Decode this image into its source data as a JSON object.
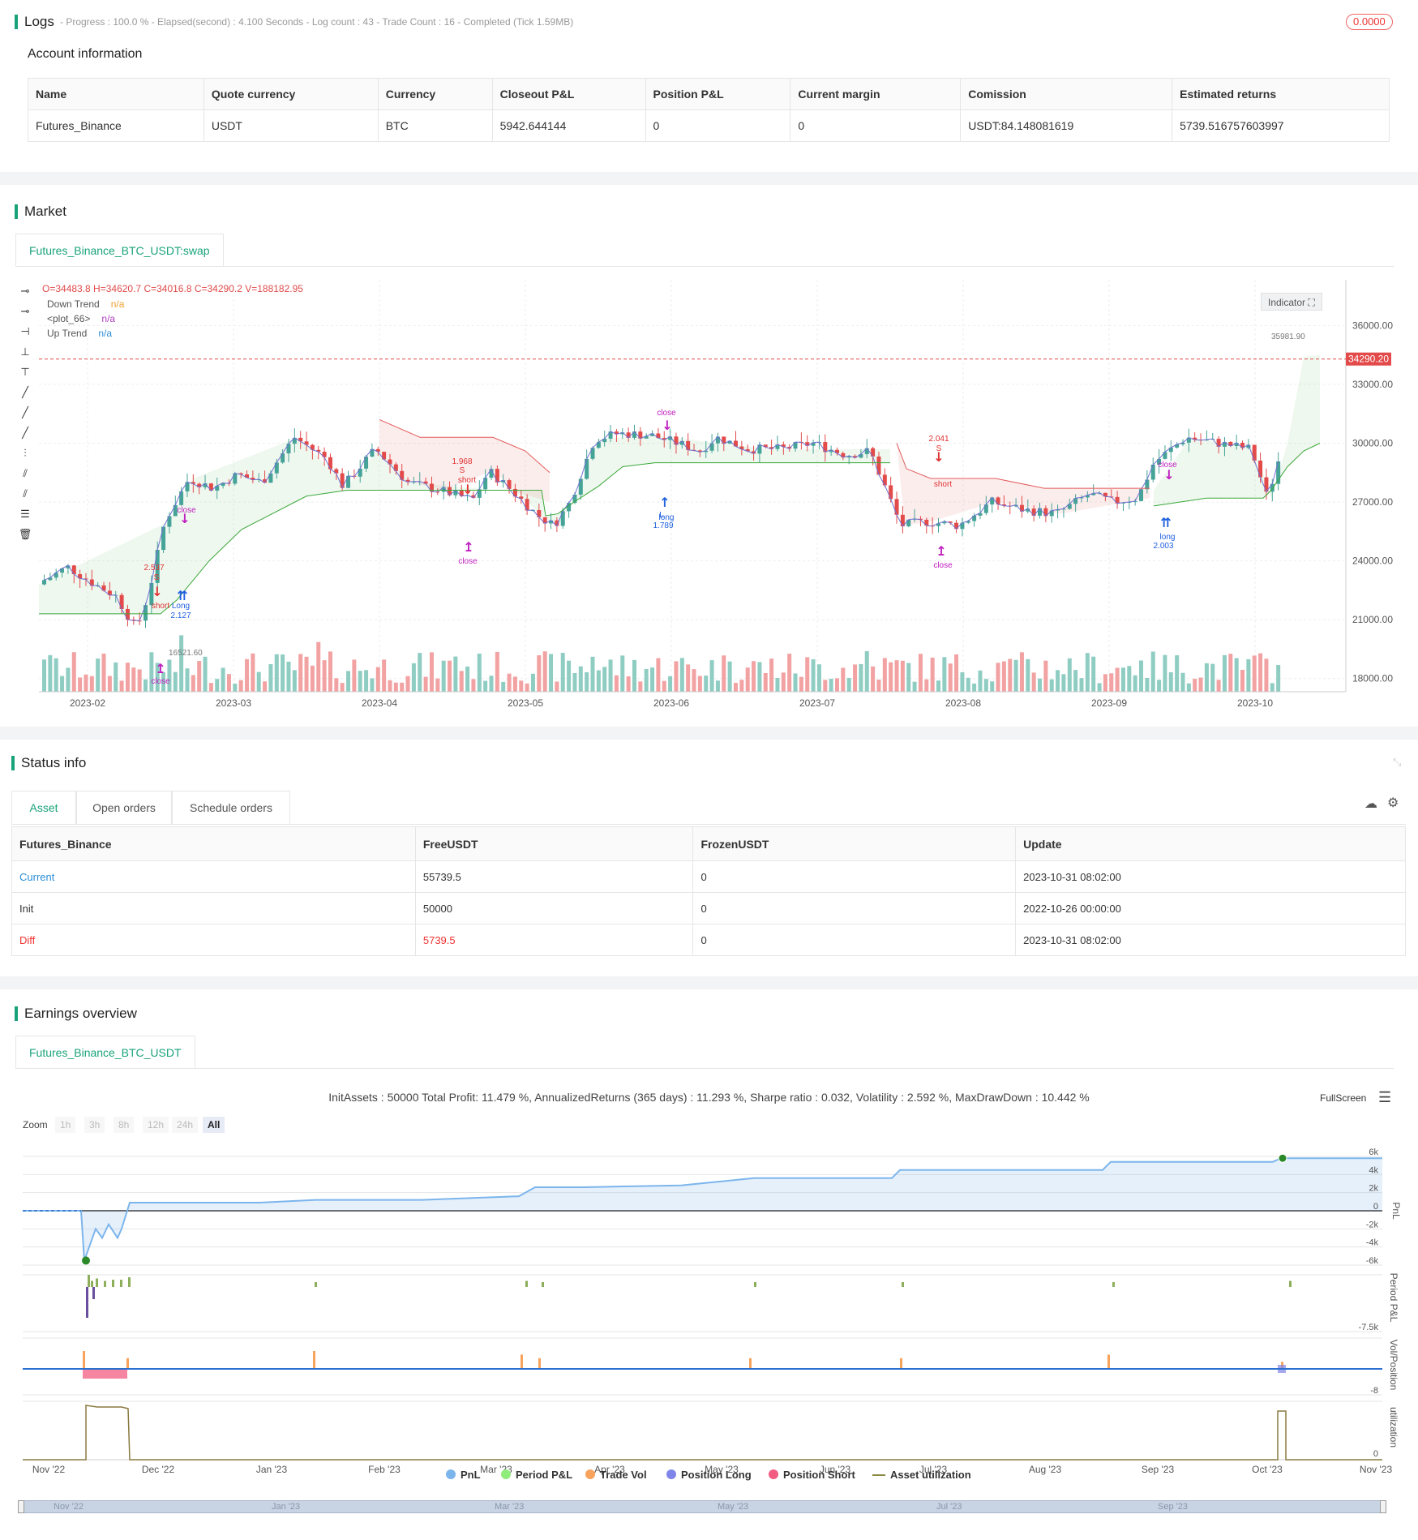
{
  "logs": {
    "title": "Logs",
    "summary": "- Progress : 100.0 % - Elapsed(second) : 4.100 Seconds - Log count : 43 - Trade Count : 16 - Completed (Tick 1.59MB)",
    "badge": "0.0000"
  },
  "account": {
    "title": "Account information",
    "headers": [
      "Name",
      "Quote currency",
      "Currency",
      "Closeout P&L",
      "Position P&L",
      "Current margin",
      "Comission",
      "Estimated returns"
    ],
    "row": [
      "Futures_Binance",
      "USDT",
      "BTC",
      "5942.644144",
      "0",
      "0",
      "USDT:84.148081619",
      "5739.516757603997"
    ]
  },
  "market": {
    "title": "Market",
    "tab": "Futures_Binance_BTC_USDT:swap",
    "ohlc": "O=34483.8 H=34620.7 C=34016.8 C=34290.2 V=188182.95",
    "legend": [
      {
        "name": "Down Trend",
        "val": "n/a",
        "color": "#f0a030"
      },
      {
        "name": "<plot_66>",
        "val": "n/a",
        "color": "#b040c0"
      },
      {
        "name": "Up Trend",
        "val": "n/a",
        "color": "#2b8fd6"
      }
    ],
    "indicator_btn": "Indicator",
    "price_tag": "34290.20",
    "high_label": "35981.90",
    "low_label": "16521.60",
    "y_ticks": [
      "36000.00",
      "33000.00",
      "30000.00",
      "27000.00",
      "24000.00",
      "21000.00",
      "18000.00"
    ],
    "x_ticks": [
      "2023-02",
      "2023-03",
      "2023-04",
      "2023-05",
      "2023-06",
      "2023-07",
      "2023-08",
      "2023-09",
      "2023-10"
    ],
    "markers": [
      {
        "text": "close",
        "color": "#c020c0"
      },
      {
        "text": "2.537",
        "color": "#e03030"
      },
      {
        "text": "S",
        "color": "#e03030"
      },
      {
        "text": "short",
        "color": "#e03030"
      },
      {
        "text": "Long",
        "color": "#2060e0"
      },
      {
        "text": "2.127",
        "color": "#2060e0"
      },
      {
        "text": "close",
        "color": "#c020c0"
      },
      {
        "text": "1.968",
        "color": "#e03030"
      },
      {
        "text": "S",
        "color": "#e03030"
      },
      {
        "text": "short",
        "color": "#e03030"
      },
      {
        "text": "close",
        "color": "#c020c0"
      },
      {
        "text": "close",
        "color": "#c020c0"
      },
      {
        "text": "long",
        "color": "#2060e0"
      },
      {
        "text": "L",
        "color": "#2060e0"
      },
      {
        "text": "1.789",
        "color": "#2060e0"
      },
      {
        "text": "2.041",
        "color": "#e03030"
      },
      {
        "text": "S",
        "color": "#e03030"
      },
      {
        "text": "short",
        "color": "#e03030"
      },
      {
        "text": "close",
        "color": "#c020c0"
      },
      {
        "text": "close",
        "color": "#c020c0"
      },
      {
        "text": "long",
        "color": "#2060e0"
      },
      {
        "text": "2.003",
        "color": "#2060e0"
      }
    ]
  },
  "status": {
    "title": "Status info",
    "tabs": [
      "Asset",
      "Open orders",
      "Schedule orders"
    ],
    "headers": [
      "Futures_Binance",
      "FreeUSDT",
      "FrozenUSDT",
      "Update"
    ],
    "rows": [
      [
        "Current",
        "55739.5",
        "0",
        "2023-10-31 08:02:00"
      ],
      [
        "Init",
        "50000",
        "0",
        "2022-10-26 00:00:00"
      ],
      [
        "Diff",
        "5739.5",
        "0",
        "2023-10-31 08:02:00"
      ]
    ]
  },
  "earnings": {
    "title": "Earnings overview",
    "tab": "Futures_Binance_BTC_USDT",
    "summary": "InitAssets : 50000 Total Profit: 11.479 %, AnnualizedReturns (365 days) : 11.293 %, Sharpe ratio : 0.032, Volatility : 2.592 %, MaxDrawDown : 10.442 %",
    "fullscreen": "FullScreen",
    "zoom_label": "Zoom",
    "zoom": [
      "1h",
      "3h",
      "8h",
      "12h",
      "24h",
      "All"
    ],
    "pnl_ticks": [
      "6k",
      "4k",
      "2k",
      "0",
      "-2k",
      "-4k",
      "-6k"
    ],
    "pnl_axis": "PnL",
    "period_axis": "Period P&L",
    "period_tick": "-7.5k",
    "vol_axis": "Vol/Position",
    "vol_tick": "-8",
    "util_axis": "utilization",
    "util_tick": "0",
    "x_ticks": [
      "Nov '22",
      "Dec '22",
      "Jan '23",
      "Feb '23",
      "Mar '23",
      "Apr '23",
      "May '23",
      "Jun '23",
      "Jul '23",
      "Aug '23",
      "Sep '23",
      "Oct '23",
      "Nov '23"
    ],
    "nav_ticks": [
      "Nov '22",
      "Jan '23",
      "Mar '23",
      "May '23",
      "Jul '23",
      "Sep '23"
    ],
    "legend": [
      {
        "name": "PnL",
        "color": "#7cb5ec"
      },
      {
        "name": "Period P&L",
        "color": "#90ed7d"
      },
      {
        "name": "Trade Vol",
        "color": "#f7a35c"
      },
      {
        "name": "Position Long",
        "color": "#8085e9"
      },
      {
        "name": "Position Short",
        "color": "#f15c80"
      },
      {
        "name": "Asset utilization",
        "color": "#8a8a40"
      }
    ]
  }
}
